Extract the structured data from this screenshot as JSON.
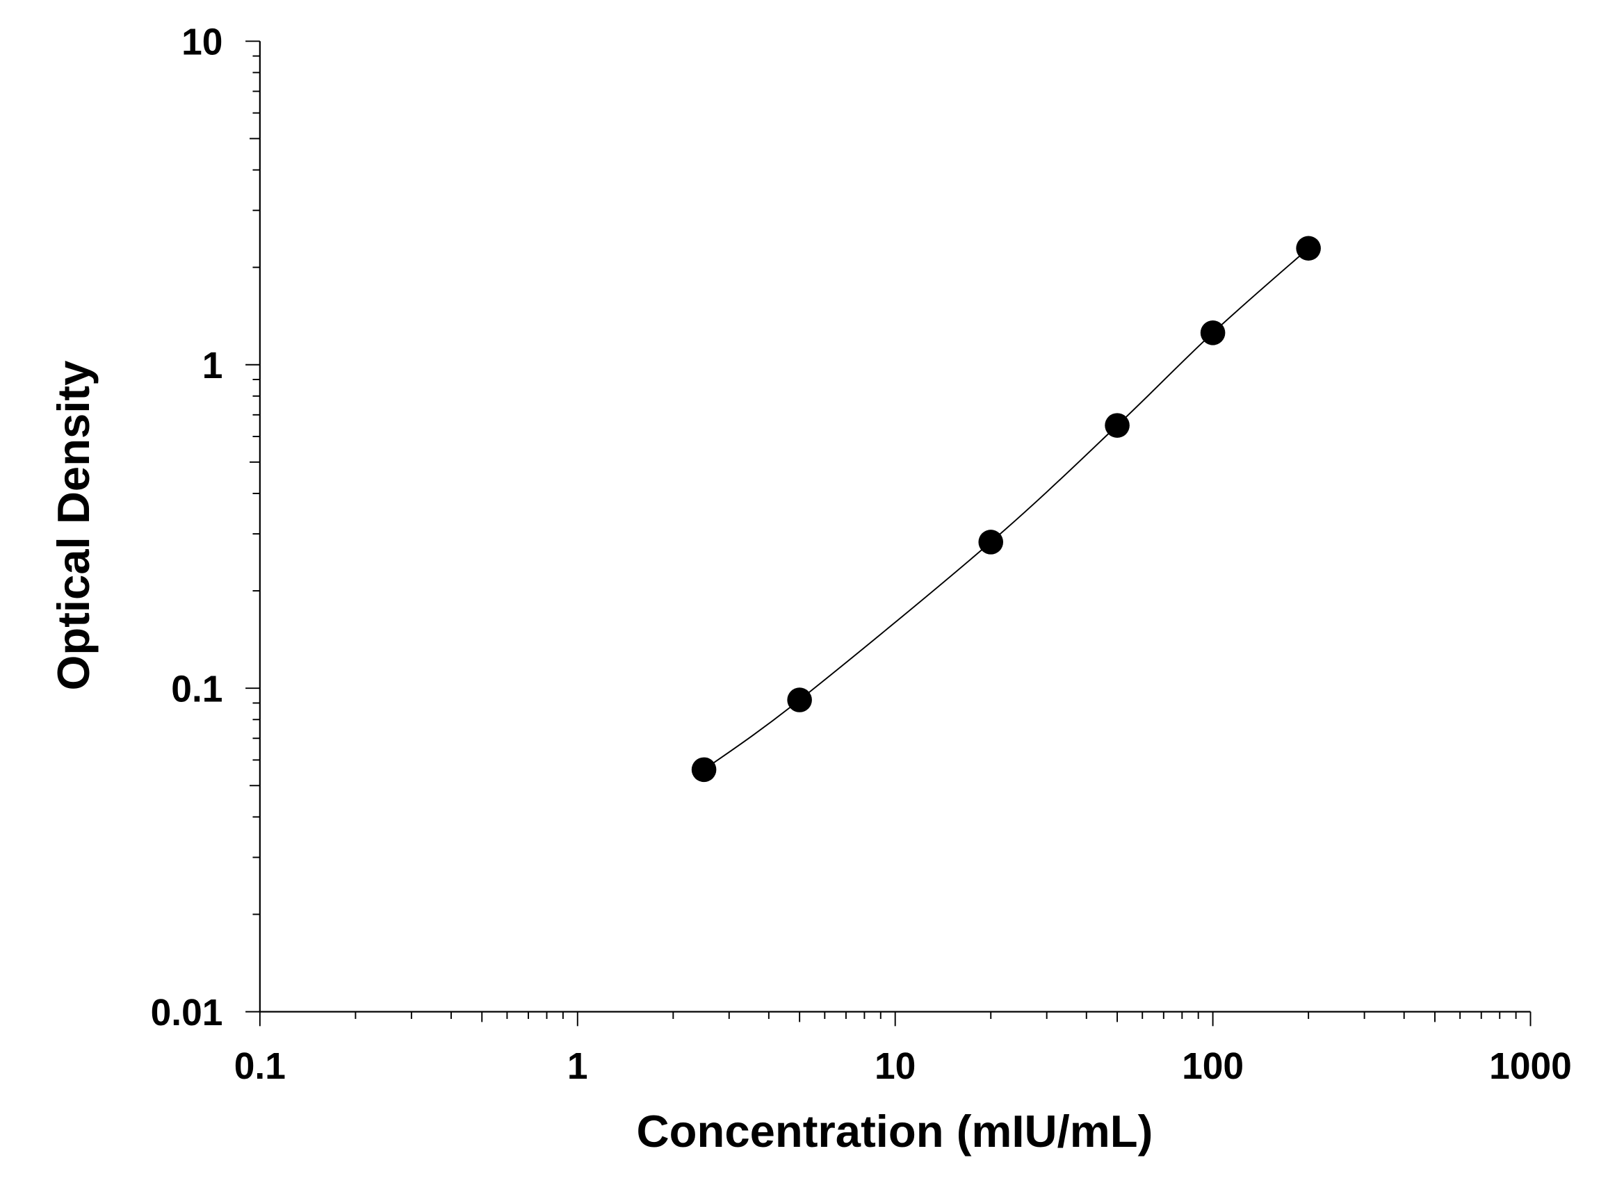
{
  "chart_data": {
    "type": "scatter",
    "xlabel": "Concentration (mIU/mL)",
    "ylabel": "Optical Density",
    "x_scale": "log",
    "y_scale": "log",
    "xlim": [
      0.1,
      1000
    ],
    "ylim": [
      0.01,
      10
    ],
    "x_ticks": [
      "0.1",
      "1",
      "10",
      "100",
      "1000"
    ],
    "y_ticks": [
      "0.01",
      "0.1",
      "1",
      "10"
    ],
    "grid": false,
    "fit_curve": true,
    "point_color": "#000000",
    "points": [
      {
        "x": 2.5,
        "y": 0.056
      },
      {
        "x": 5,
        "y": 0.092
      },
      {
        "x": 20,
        "y": 0.283
      },
      {
        "x": 50,
        "y": 0.649
      },
      {
        "x": 100,
        "y": 1.255
      },
      {
        "x": 200,
        "y": 2.29
      }
    ]
  }
}
